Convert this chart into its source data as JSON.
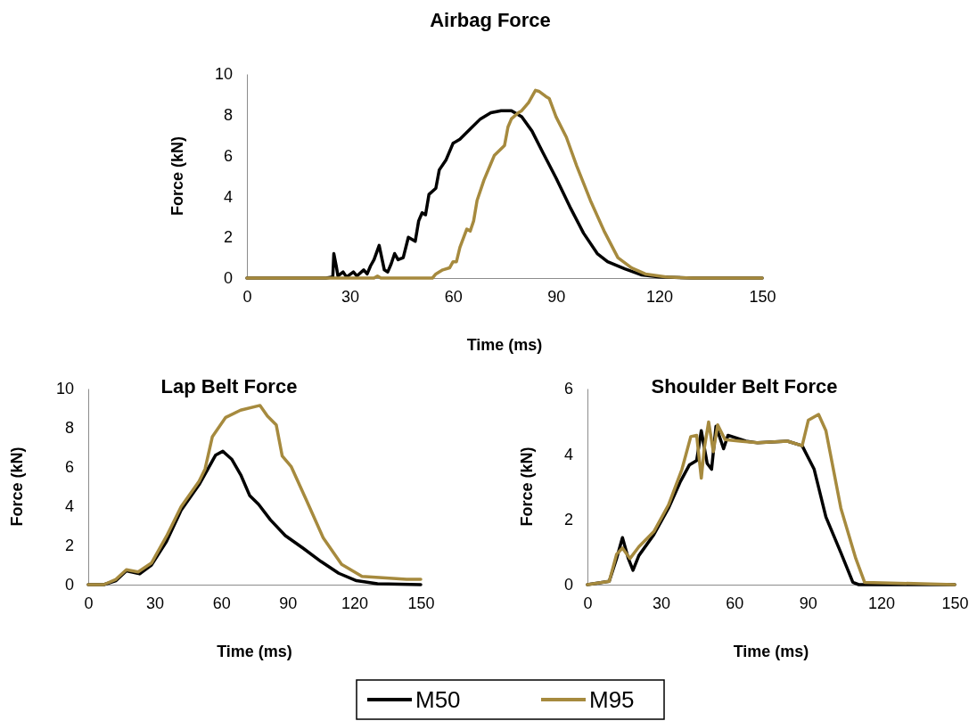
{
  "chart_data": [
    {
      "type": "line",
      "title": "Airbag Force",
      "xlabel": "Time (ms)",
      "ylabel": "Force (kN)",
      "xlim": [
        0,
        150
      ],
      "xticks": [
        0,
        30,
        60,
        90,
        120,
        150
      ],
      "ylim": [
        0,
        10
      ],
      "yticks": [
        0,
        2,
        4,
        6,
        8,
        10
      ],
      "grid": false,
      "series": [
        {
          "color": "#000000",
          "x": [
            0,
            23,
            25,
            25.3,
            26,
            26.5,
            28,
            29,
            31,
            32,
            34,
            35,
            36,
            37,
            38.5,
            40,
            41,
            42,
            43,
            44,
            45.5,
            47,
            49,
            50,
            51,
            52,
            53,
            55,
            56,
            58,
            60,
            62,
            65,
            68,
            71,
            74,
            77,
            80,
            83,
            86,
            90,
            94,
            98,
            102,
            105,
            110,
            115,
            120,
            130,
            150
          ],
          "values": [
            0,
            0,
            0.05,
            1.2,
            0.6,
            0.1,
            0.3,
            0.05,
            0.3,
            0.1,
            0.4,
            0.2,
            0.6,
            0.9,
            1.6,
            0.4,
            0.3,
            0.7,
            1.2,
            0.9,
            1,
            2,
            1.8,
            2.8,
            3.2,
            3.1,
            4.1,
            4.4,
            5.3,
            5.8,
            6.6,
            6.8,
            7.3,
            7.8,
            8.1,
            8.2,
            8.2,
            7.9,
            7.2,
            6.2,
            4.9,
            3.5,
            2.2,
            1.2,
            0.8,
            0.45,
            0.15,
            0.05,
            0,
            0
          ]
        },
        {
          "color": "#a68a3e",
          "x": [
            0,
            37,
            38,
            39,
            54,
            55,
            57,
            59,
            60,
            61,
            62,
            64,
            65,
            66,
            67,
            69,
            71,
            72,
            75,
            76,
            77,
            79,
            80,
            82,
            84,
            85,
            87,
            88,
            90,
            93,
            96,
            100,
            104,
            108,
            112,
            116,
            122,
            130,
            150
          ],
          "values": [
            0,
            0,
            0.1,
            0,
            0,
            0.2,
            0.4,
            0.5,
            0.8,
            0.8,
            1.5,
            2.4,
            2.3,
            2.8,
            3.8,
            4.8,
            5.6,
            6,
            6.5,
            7.4,
            7.8,
            8.1,
            8.2,
            8.6,
            9.2,
            9.15,
            8.9,
            8.8,
            7.9,
            6.9,
            5.5,
            3.8,
            2.3,
            1,
            0.5,
            0.2,
            0.05,
            0,
            0
          ]
        }
      ]
    },
    {
      "type": "line",
      "title": "Lap Belt Force",
      "xlabel": "Time (ms)",
      "ylabel": "Force (kN)",
      "xlim": [
        0,
        150
      ],
      "xticks": [
        0,
        30,
        60,
        90,
        120,
        150
      ],
      "ylim": [
        0,
        10
      ],
      "yticks": [
        0,
        2,
        4,
        6,
        8,
        10
      ],
      "grid": false,
      "legend": "bottom",
      "series": [
        {
          "name": "M50",
          "color": "#000000",
          "x": [
            0,
            7,
            12.5,
            17.2,
            23.2,
            28.5,
            35.3,
            41.9,
            50,
            54,
            57.4,
            60.7,
            64.7,
            68.8,
            72.8,
            76.8,
            82.2,
            88.9,
            97,
            105,
            113,
            121,
            130.5,
            150
          ],
          "values": [
            0,
            0,
            0.2,
            0.7,
            0.55,
            1,
            2.2,
            3.8,
            5.1,
            5.9,
            6.6,
            6.8,
            6.4,
            5.6,
            4.55,
            4.1,
            3.3,
            2.5,
            1.85,
            1.18,
            0.58,
            0.2,
            0.05,
            0
          ]
        },
        {
          "name": "M95",
          "color": "#a68a3e",
          "x": [
            0,
            7,
            12.5,
            17.2,
            22.5,
            28.5,
            35.3,
            41.9,
            50,
            52.7,
            56,
            62,
            68.7,
            77.5,
            80.8,
            84.8,
            87.5,
            91.5,
            98.2,
            106,
            114.3,
            123.5,
            143.6,
            150
          ],
          "values": [
            0,
            0,
            0.27,
            0.76,
            0.65,
            1.1,
            2.47,
            3.98,
            5.27,
            5.9,
            7.55,
            8.53,
            8.9,
            9.14,
            8.6,
            8.15,
            6.56,
            6.03,
            4.36,
            2.39,
            1.03,
            0.42,
            0.27,
            0.27
          ]
        }
      ]
    },
    {
      "type": "line",
      "title": "Shoulder Belt Force",
      "xlabel": "Time (ms)",
      "ylabel": "Force (kN)",
      "xlim": [
        0,
        150
      ],
      "xticks": [
        0,
        30,
        60,
        90,
        120,
        150
      ],
      "ylim": [
        0,
        6
      ],
      "yticks": [
        0,
        2,
        4,
        6
      ],
      "grid": false,
      "series": [
        {
          "color": "#000000",
          "x": [
            0,
            8.9,
            11.9,
            14.3,
            16.7,
            18.6,
            21,
            27.1,
            33.1,
            38,
            41.6,
            44.6,
            46.5,
            48.9,
            50.7,
            52.5,
            55.6,
            57.4,
            64.7,
            69.5,
            81.7,
            87.7,
            92.6,
            97.4,
            103.5,
            108.4,
            110.8,
            150
          ],
          "values": [
            0,
            0.1,
            0.8,
            1.44,
            0.8,
            0.44,
            0.89,
            1.53,
            2.34,
            3.16,
            3.66,
            3.8,
            4.71,
            3.71,
            3.53,
            4.85,
            4.16,
            4.57,
            4.39,
            4.34,
            4.39,
            4.25,
            3.53,
            2.07,
            0.98,
            0.07,
            0,
            0
          ]
        },
        {
          "color": "#a68a3e",
          "x": [
            0,
            8.9,
            11.9,
            14.3,
            17.4,
            21,
            27.1,
            33.1,
            38.6,
            42.2,
            44.6,
            46.5,
            47.7,
            49.5,
            51.4,
            53.2,
            56.2,
            62.3,
            69.5,
            81.7,
            87.7,
            90.2,
            94.4,
            97.4,
            103.5,
            109.6,
            113.2,
            150
          ],
          "values": [
            0,
            0.1,
            0.93,
            1.12,
            0.8,
            1.16,
            1.62,
            2.44,
            3.53,
            4.53,
            4.57,
            3.26,
            4.16,
            4.98,
            4.07,
            4.89,
            4.44,
            4.39,
            4.34,
            4.39,
            4.25,
            5.03,
            5.21,
            4.71,
            2.34,
            0.8,
            0.07,
            0
          ]
        }
      ]
    }
  ]
}
